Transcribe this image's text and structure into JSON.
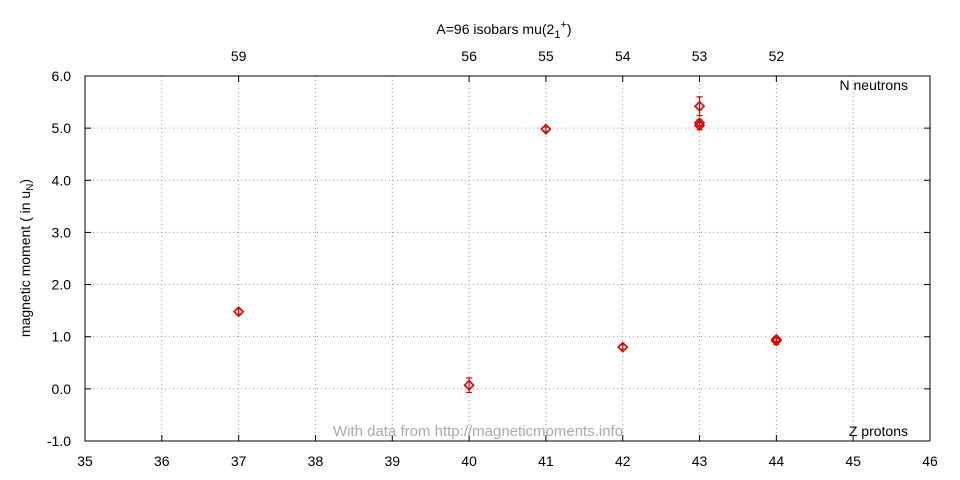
{
  "chart_data": {
    "type": "scatter",
    "title_main": "A=96 isobars mu(2",
    "title_sub": "1",
    "title_sup": "+",
    "title_close": ")",
    "ylabel_main": "magnetic moment ( in u",
    "ylabel_sub": "N",
    "ylabel_close": ")",
    "xlim": [
      35,
      46
    ],
    "ylim": [
      -1.0,
      6.0
    ],
    "x_ticks": [
      "35",
      "36",
      "37",
      "38",
      "39",
      "40",
      "41",
      "42",
      "43",
      "44",
      "45",
      "46"
    ],
    "y_ticks": [
      "-1.0",
      "0.0",
      "1.0",
      "2.0",
      "3.0",
      "4.0",
      "5.0",
      "6.0"
    ],
    "top_ticks": [
      {
        "z": 37,
        "label": "59"
      },
      {
        "z": 40,
        "label": "56"
      },
      {
        "z": 41,
        "label": "55"
      },
      {
        "z": 42,
        "label": "54"
      },
      {
        "z": 43,
        "label": "53"
      },
      {
        "z": 44,
        "label": "52"
      }
    ],
    "points": [
      {
        "x": 37,
        "y": 1.48,
        "err": 0.05
      },
      {
        "x": 40,
        "y": 0.07,
        "err": 0.14
      },
      {
        "x": 41,
        "y": 4.98,
        "err": 0.04
      },
      {
        "x": 42,
        "y": 0.8,
        "err": 0.04
      },
      {
        "x": 43,
        "y": 5.42,
        "err": 0.18
      },
      {
        "x": 43,
        "y": 5.1,
        "err": 0.06
      },
      {
        "x": 43,
        "y": 5.05,
        "err": 0.08
      },
      {
        "x": 44,
        "y": 0.92,
        "err": 0.07
      },
      {
        "x": 44,
        "y": 0.95,
        "err": 0.04
      }
    ],
    "marker_color": "#dd0000",
    "grid": true,
    "label_top_right": "N neutrons",
    "label_bottom_right": "Z protons",
    "watermark": "With data from http://magneticmoments.info"
  }
}
